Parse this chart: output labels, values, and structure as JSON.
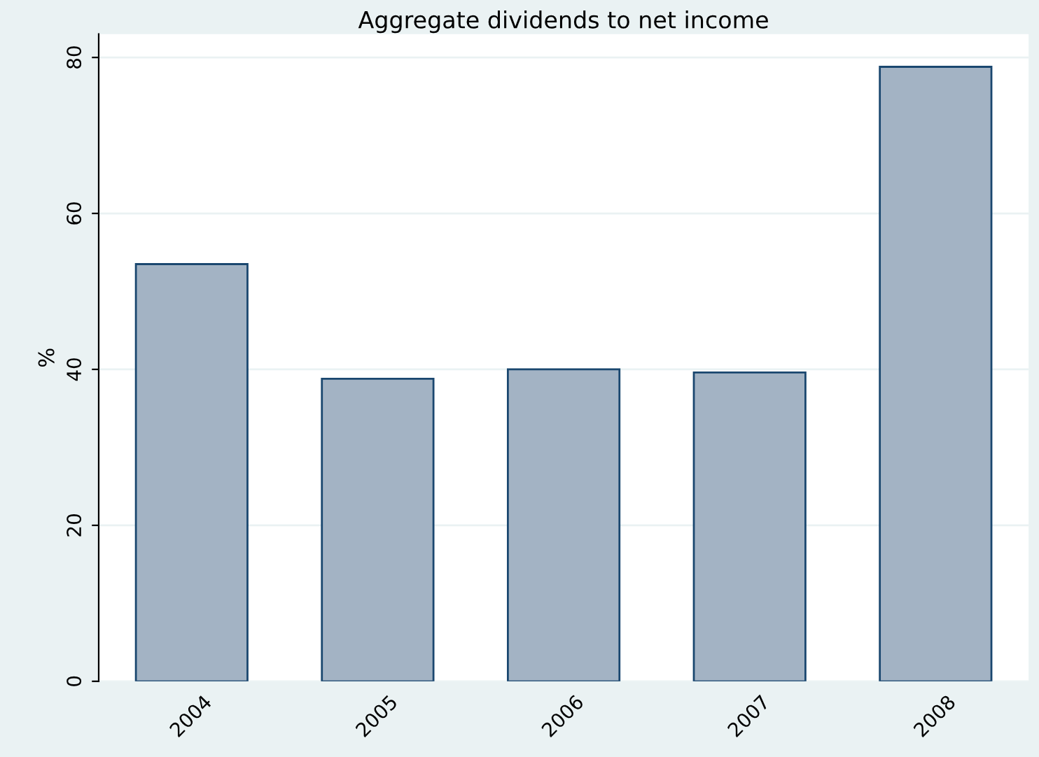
{
  "chart_data": {
    "type": "bar",
    "title": "Aggregate dividends to net income",
    "ylabel": "%",
    "categories": [
      "2004",
      "2005",
      "2006",
      "2007",
      "2008"
    ],
    "values": [
      53.5,
      38.8,
      40.0,
      39.6,
      78.8
    ],
    "color": "#a3b3c4",
    "ylim": [
      0,
      83
    ],
    "yticks": [
      0,
      20,
      40,
      60,
      80
    ],
    "grid": "y"
  }
}
